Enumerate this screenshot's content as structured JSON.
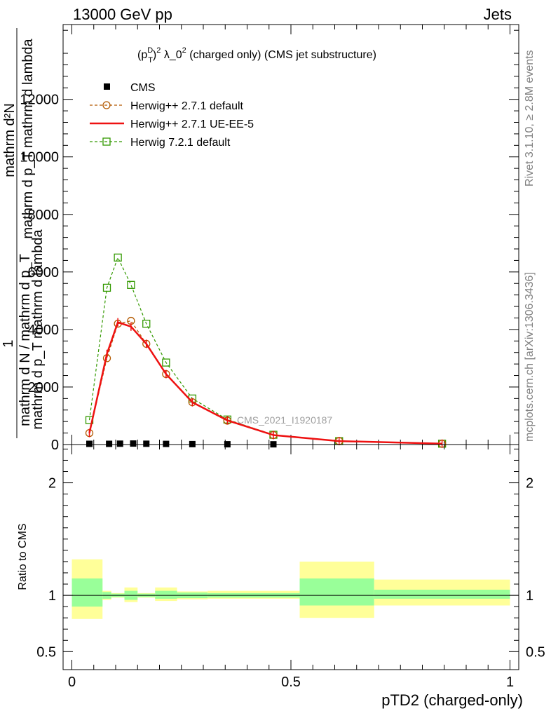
{
  "header": {
    "left": "13000 GeV pp",
    "right": "Jets"
  },
  "side_text": {
    "rivet": "Rivet 3.1.10, ≥ 2.8M events",
    "mcplots": "mcplots.cern.ch [arXiv:1306.3436]"
  },
  "colors": {
    "cms": "#000000",
    "herwig_default": "#b35900",
    "herwig_ueee5": "#ee1111",
    "herwig7": "#339900",
    "band_inner": "#99ff99",
    "band_outer": "#ffff99"
  },
  "chart_data": [
    {
      "type": "line",
      "panel": "main",
      "title": "(p_T^D)^2 λ_0^2 (charged only) (CMS jet substructure)",
      "title_parts": {
        "p": "(p",
        "sub": "T",
        "sup": "D",
        "close": ")",
        "sq": "2",
        "mid": " λ_0",
        "sq2": "2",
        "rest": " (charged only) (CMS jet substructure)"
      },
      "ylabel_top": "mathrm d²N",
      "ylabel_bottom": "mathrm d p_T mathrm d lambda",
      "ylabel_one": "1",
      "ylabel_den_a": "mathrm d N / mathrm d p_T",
      "ylabel_den_b": "mathrm d p_T mathrm d lambda",
      "watermark": "CMS_2021_I1920187",
      "xlim": [
        -0.02,
        1.02
      ],
      "ylim": [
        0,
        14600
      ],
      "yticks": [
        0,
        2000,
        4000,
        6000,
        8000,
        10000,
        12000
      ],
      "ytick_labels": [
        "0",
        "2000",
        "4000",
        "6000",
        "8000",
        "10000",
        "12000"
      ],
      "legend": "top-left",
      "series": [
        {
          "name": "CMS",
          "style": "marker-square",
          "x": [
            0.04,
            0.085,
            0.11,
            0.14,
            0.17,
            0.215,
            0.275,
            0.355,
            0.46
          ],
          "y": [
            25,
            25,
            30,
            35,
            28,
            22,
            15,
            10,
            8
          ]
        },
        {
          "name": "Herwig++ 2.7.1 default",
          "style": "dashed-circle",
          "x": [
            0.04,
            0.08,
            0.105,
            0.135,
            0.17,
            0.215,
            0.275,
            0.355,
            0.46,
            0.61,
            0.845
          ],
          "y": [
            400,
            3000,
            4200,
            4300,
            3500,
            2450,
            1470,
            830,
            330,
            120,
            30
          ]
        },
        {
          "name": "Herwig++ 2.7.1 UE-EE-5",
          "style": "solid",
          "x": [
            0.04,
            0.08,
            0.105,
            0.135,
            0.17,
            0.215,
            0.275,
            0.355,
            0.46,
            0.61,
            0.845
          ],
          "y": [
            400,
            3150,
            4250,
            4100,
            3500,
            2450,
            1470,
            840,
            330,
            120,
            30
          ]
        },
        {
          "name": "Herwig 7.2.1 default",
          "style": "dashed-open-square",
          "x": [
            0.04,
            0.08,
            0.105,
            0.135,
            0.17,
            0.215,
            0.275,
            0.355,
            0.46,
            0.61,
            0.845
          ],
          "y": [
            850,
            5450,
            6500,
            5550,
            4200,
            2850,
            1600,
            870,
            340,
            120,
            30
          ]
        }
      ]
    },
    {
      "type": "area",
      "panel": "ratio",
      "ylabel": "Ratio to CMS",
      "xlabel": "pTD2 (charged-only)",
      "xlim": [
        -0.02,
        1.02
      ],
      "ylim": [
        0.34,
        2.34
      ],
      "yticks": [
        0.5,
        1,
        2
      ],
      "ytick_labels": [
        "0.5",
        "1",
        "2"
      ],
      "xticks": [
        0,
        0.5,
        1
      ],
      "xtick_labels": [
        "0",
        "0.5",
        "1"
      ],
      "bins": [
        {
          "x0": 0.0,
          "x1": 0.07,
          "inner": [
            0.9,
            1.15
          ],
          "outer": [
            0.79,
            1.32
          ]
        },
        {
          "x0": 0.07,
          "x1": 0.09,
          "inner": [
            0.97,
            1.03
          ],
          "outer": [
            0.96,
            1.04
          ]
        },
        {
          "x0": 0.09,
          "x1": 0.12,
          "inner": [
            0.985,
            1.015
          ],
          "outer": [
            0.98,
            1.02
          ]
        },
        {
          "x0": 0.12,
          "x1": 0.15,
          "inner": [
            0.96,
            1.04
          ],
          "outer": [
            0.94,
            1.07
          ]
        },
        {
          "x0": 0.15,
          "x1": 0.19,
          "inner": [
            0.985,
            1.015
          ],
          "outer": [
            0.98,
            1.02
          ]
        },
        {
          "x0": 0.19,
          "x1": 0.24,
          "inner": [
            0.97,
            1.04
          ],
          "outer": [
            0.95,
            1.07
          ]
        },
        {
          "x0": 0.24,
          "x1": 0.31,
          "inner": [
            0.975,
            1.025
          ],
          "outer": [
            0.965,
            1.035
          ]
        },
        {
          "x0": 0.31,
          "x1": 0.4,
          "inner": [
            0.98,
            1.02
          ],
          "outer": [
            0.97,
            1.04
          ]
        },
        {
          "x0": 0.4,
          "x1": 0.52,
          "inner": [
            0.98,
            1.02
          ],
          "outer": [
            0.97,
            1.04
          ]
        },
        {
          "x0": 0.52,
          "x1": 0.69,
          "inner": [
            0.91,
            1.15
          ],
          "outer": [
            0.8,
            1.3
          ]
        },
        {
          "x0": 0.69,
          "x1": 1.0,
          "inner": [
            0.97,
            1.05
          ],
          "outer": [
            0.91,
            1.14
          ]
        }
      ]
    }
  ]
}
